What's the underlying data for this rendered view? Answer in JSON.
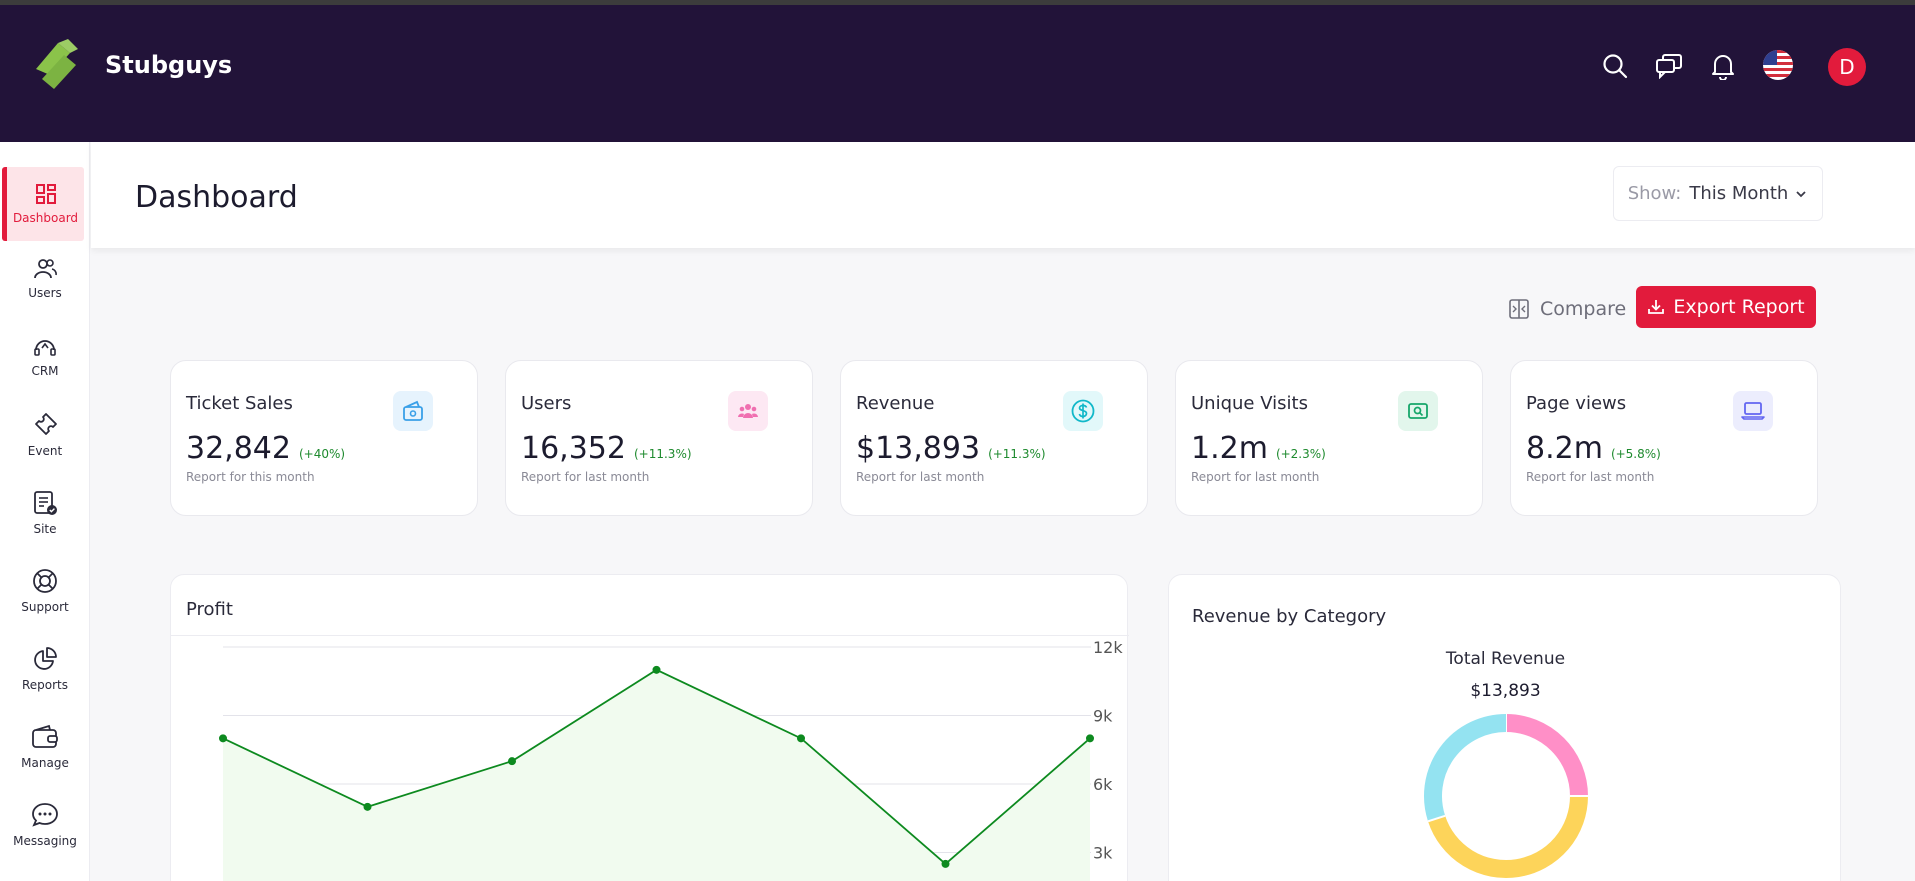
{
  "app": {
    "brand": "Stubguys",
    "avatar_initial": "D"
  },
  "sidebar": {
    "items": [
      {
        "label": "Dashboard",
        "icon": "dashboard-icon"
      },
      {
        "label": "Users",
        "icon": "users-icon"
      },
      {
        "label": "CRM",
        "icon": "crm-icon"
      },
      {
        "label": "Event",
        "icon": "ticket-icon"
      },
      {
        "label": "Site",
        "icon": "site-icon"
      },
      {
        "label": "Support",
        "icon": "lifebuoy-icon"
      },
      {
        "label": "Reports",
        "icon": "pie-chart-icon"
      },
      {
        "label": "Manage",
        "icon": "wallet-icon"
      },
      {
        "label": "Messaging",
        "icon": "chat-icon"
      }
    ]
  },
  "page": {
    "title": "Dashboard",
    "show_label": "Show:",
    "show_value": "This Month",
    "compare_label": "Compare",
    "export_label": "Export Report"
  },
  "cards": [
    {
      "title": "Ticket Sales",
      "value": "32,842",
      "change": "(+40%)",
      "sub": "Report for this month",
      "icon": "ticket-cash-icon",
      "color": "#3aa0e8",
      "bg": "#e6f3fd"
    },
    {
      "title": "Users",
      "value": "16,352",
      "change": "(+11.3%)",
      "sub": "Report for last month",
      "icon": "users-group-icon",
      "color": "#f06fb0",
      "bg": "#fde8f3"
    },
    {
      "title": "Revenue",
      "value": "$13,893",
      "change": "(+11.3%)",
      "sub": "Report for last month",
      "icon": "dollar-icon",
      "color": "#11b8c9",
      "bg": "#e2f8fa"
    },
    {
      "title": "Unique Visits",
      "value": "1.2m",
      "change": "(+2.3%)",
      "sub": "Report for last month",
      "icon": "visit-icon",
      "color": "#16a66a",
      "bg": "#e2f6ec"
    },
    {
      "title": "Page views",
      "value": "8.2m",
      "change": "(+5.8%)",
      "sub": "Report for last month",
      "icon": "laptop-icon",
      "color": "#6366f1",
      "bg": "#ecedfd"
    }
  ],
  "profit": {
    "title": "Profit",
    "chart_data": {
      "type": "area",
      "values": [
        8000,
        5000,
        7000,
        11000,
        8000,
        2500,
        8000
      ],
      "ylim": [
        0,
        12000
      ],
      "yticks": [
        "12k",
        "9k",
        "6k",
        "3k"
      ],
      "ytick_values": [
        12000,
        9000,
        6000,
        3000
      ],
      "color": "#0d8a1f",
      "grid": true
    }
  },
  "revenue_by_category": {
    "title": "Revenue by Category",
    "total_label": "Total Revenue",
    "total_value": "$13,893",
    "chart_data": {
      "type": "pie",
      "values": [
        25,
        45,
        30
      ],
      "colors": [
        "#ff8fc7",
        "#fdd45a",
        "#94e3f1"
      ]
    }
  }
}
